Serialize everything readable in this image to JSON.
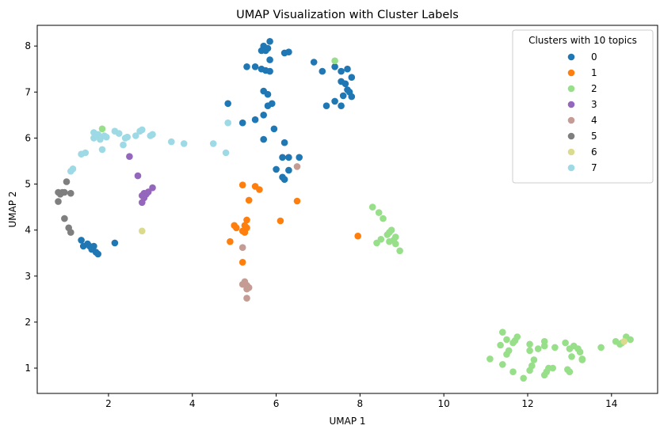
{
  "chart_data": {
    "type": "scatter",
    "title": "UMAP Visualization with Cluster Labels",
    "xlabel": "UMAP 1",
    "ylabel": "UMAP 2",
    "xlim": [
      0.3,
      15.1
    ],
    "ylim": [
      0.45,
      8.45
    ],
    "xticks": [
      2,
      4,
      6,
      8,
      10,
      12,
      14
    ],
    "yticks": [
      1,
      2,
      3,
      4,
      5,
      6,
      7,
      8
    ],
    "grid": false,
    "legend": {
      "title": "Clusters with 10 topics",
      "placement": "top-right"
    },
    "series": [
      {
        "name": "0",
        "color": "#1f77b4",
        "points": [
          [
            5.7,
            8.0
          ],
          [
            5.85,
            8.1
          ],
          [
            5.75,
            7.9
          ],
          [
            5.8,
            7.95
          ],
          [
            6.2,
            7.85
          ],
          [
            6.3,
            7.87
          ],
          [
            5.65,
            7.9
          ],
          [
            5.85,
            7.7
          ],
          [
            5.3,
            7.55
          ],
          [
            5.5,
            7.55
          ],
          [
            5.65,
            7.5
          ],
          [
            5.75,
            7.47
          ],
          [
            5.85,
            7.45
          ],
          [
            6.9,
            7.65
          ],
          [
            7.1,
            7.45
          ],
          [
            7.4,
            7.55
          ],
          [
            7.55,
            7.45
          ],
          [
            7.7,
            7.5
          ],
          [
            7.8,
            7.32
          ],
          [
            7.55,
            7.23
          ],
          [
            7.65,
            7.18
          ],
          [
            7.7,
            7.05
          ],
          [
            7.6,
            6.92
          ],
          [
            7.75,
            7.0
          ],
          [
            7.8,
            6.9
          ],
          [
            7.4,
            6.8
          ],
          [
            7.55,
            6.7
          ],
          [
            7.2,
            6.7
          ],
          [
            5.7,
            7.02
          ],
          [
            5.8,
            6.95
          ],
          [
            5.9,
            6.75
          ],
          [
            5.8,
            6.7
          ],
          [
            4.85,
            6.75
          ],
          [
            5.7,
            6.5
          ],
          [
            5.5,
            6.4
          ],
          [
            5.2,
            6.33
          ],
          [
            5.95,
            6.2
          ],
          [
            5.7,
            5.97
          ],
          [
            6.2,
            5.9
          ],
          [
            6.15,
            5.58
          ],
          [
            6.3,
            5.58
          ],
          [
            6.55,
            5.58
          ],
          [
            6.0,
            5.32
          ],
          [
            6.3,
            5.3
          ],
          [
            6.15,
            5.15
          ],
          [
            6.2,
            5.1
          ],
          [
            1.35,
            3.78
          ],
          [
            1.4,
            3.65
          ],
          [
            1.5,
            3.7
          ],
          [
            1.55,
            3.65
          ],
          [
            1.65,
            3.65
          ],
          [
            1.6,
            3.58
          ],
          [
            1.7,
            3.52
          ],
          [
            1.75,
            3.48
          ],
          [
            2.15,
            3.72
          ]
        ]
      },
      {
        "name": "1",
        "color": "#ff7f0e",
        "points": [
          [
            5.2,
            4.98
          ],
          [
            5.5,
            4.95
          ],
          [
            5.6,
            4.88
          ],
          [
            5.35,
            4.65
          ],
          [
            6.5,
            4.63
          ],
          [
            5.3,
            4.22
          ],
          [
            6.1,
            4.2
          ],
          [
            5.0,
            4.1
          ],
          [
            5.05,
            4.05
          ],
          [
            5.25,
            4.1
          ],
          [
            5.3,
            4.05
          ],
          [
            5.2,
            3.98
          ],
          [
            5.25,
            3.95
          ],
          [
            4.9,
            3.75
          ],
          [
            5.2,
            3.3
          ],
          [
            7.95,
            3.87
          ]
        ]
      },
      {
        "name": "2",
        "color": "#98df8a",
        "points": [
          [
            1.85,
            6.2
          ],
          [
            7.4,
            7.68
          ],
          [
            8.3,
            4.5
          ],
          [
            8.45,
            4.38
          ],
          [
            8.55,
            4.25
          ],
          [
            8.7,
            3.95
          ],
          [
            8.65,
            3.9
          ],
          [
            8.75,
            4.0
          ],
          [
            8.85,
            3.85
          ],
          [
            8.8,
            3.78
          ],
          [
            8.7,
            3.75
          ],
          [
            8.85,
            3.7
          ],
          [
            8.5,
            3.8
          ],
          [
            8.4,
            3.72
          ],
          [
            8.95,
            3.55
          ],
          [
            11.4,
            1.78
          ],
          [
            11.5,
            1.62
          ],
          [
            11.75,
            1.68
          ],
          [
            11.7,
            1.6
          ],
          [
            11.65,
            1.55
          ],
          [
            12.4,
            1.58
          ],
          [
            12.9,
            1.55
          ],
          [
            11.35,
            1.5
          ],
          [
            12.05,
            1.52
          ],
          [
            12.4,
            1.48
          ],
          [
            13.1,
            1.48
          ],
          [
            13.2,
            1.42
          ],
          [
            13.25,
            1.35
          ],
          [
            11.55,
            1.38
          ],
          [
            11.5,
            1.3
          ],
          [
            12.05,
            1.38
          ],
          [
            12.25,
            1.42
          ],
          [
            12.65,
            1.45
          ],
          [
            13.0,
            1.42
          ],
          [
            13.3,
            1.2
          ],
          [
            13.3,
            1.18
          ],
          [
            13.05,
            1.25
          ],
          [
            12.15,
            1.18
          ],
          [
            11.1,
            1.2
          ],
          [
            11.4,
            1.08
          ],
          [
            12.1,
            1.05
          ],
          [
            12.5,
            1.0
          ],
          [
            12.6,
            1.0
          ],
          [
            12.95,
            0.97
          ],
          [
            13.0,
            0.92
          ],
          [
            11.65,
            0.92
          ],
          [
            12.45,
            0.92
          ],
          [
            12.4,
            0.85
          ],
          [
            12.05,
            0.95
          ],
          [
            11.9,
            0.78
          ],
          [
            13.75,
            1.45
          ],
          [
            14.1,
            1.58
          ],
          [
            14.2,
            1.52
          ],
          [
            14.25,
            1.55
          ],
          [
            14.35,
            1.68
          ],
          [
            14.45,
            1.62
          ]
        ]
      },
      {
        "name": "3",
        "color": "#9467bd",
        "points": [
          [
            2.5,
            5.6
          ],
          [
            2.7,
            5.18
          ],
          [
            3.05,
            4.92
          ],
          [
            2.95,
            4.83
          ],
          [
            2.9,
            4.78
          ],
          [
            2.85,
            4.8
          ],
          [
            2.8,
            4.75
          ],
          [
            2.85,
            4.7
          ],
          [
            2.8,
            4.6
          ]
        ]
      },
      {
        "name": "4",
        "color": "#c49c94",
        "points": [
          [
            6.5,
            5.38
          ],
          [
            5.2,
            3.62
          ],
          [
            5.25,
            2.88
          ],
          [
            5.2,
            2.82
          ],
          [
            5.3,
            2.8
          ],
          [
            5.35,
            2.75
          ],
          [
            5.3,
            2.72
          ],
          [
            5.3,
            2.52
          ]
        ]
      },
      {
        "name": "5",
        "color": "#7f7f7f",
        "points": [
          [
            1.0,
            5.05
          ],
          [
            0.8,
            4.82
          ],
          [
            0.85,
            4.78
          ],
          [
            0.9,
            4.82
          ],
          [
            0.95,
            4.82
          ],
          [
            1.1,
            4.8
          ],
          [
            0.8,
            4.62
          ],
          [
            0.95,
            4.25
          ],
          [
            1.05,
            4.05
          ],
          [
            1.1,
            3.95
          ]
        ]
      },
      {
        "name": "6",
        "color": "#dbdb8d",
        "points": [
          [
            2.8,
            3.98
          ],
          [
            14.3,
            1.58
          ]
        ]
      },
      {
        "name": "7",
        "color": "#9edae5",
        "points": [
          [
            1.65,
            6.12
          ],
          [
            1.7,
            6.05
          ],
          [
            1.65,
            6.0
          ],
          [
            1.75,
            6.08
          ],
          [
            1.8,
            5.97
          ],
          [
            1.9,
            6.05
          ],
          [
            1.95,
            6.02
          ],
          [
            2.15,
            6.15
          ],
          [
            2.25,
            6.1
          ],
          [
            2.75,
            6.15
          ],
          [
            2.8,
            6.18
          ],
          [
            3.05,
            6.08
          ],
          [
            3.0,
            6.05
          ],
          [
            2.65,
            6.05
          ],
          [
            2.45,
            6.02
          ],
          [
            2.4,
            6.0
          ],
          [
            2.35,
            5.85
          ],
          [
            3.5,
            5.92
          ],
          [
            3.8,
            5.88
          ],
          [
            4.5,
            5.88
          ],
          [
            4.85,
            6.33
          ],
          [
            4.8,
            5.68
          ],
          [
            1.85,
            5.75
          ],
          [
            1.45,
            5.68
          ],
          [
            1.35,
            5.65
          ],
          [
            1.15,
            5.33
          ],
          [
            1.1,
            5.28
          ]
        ]
      }
    ]
  }
}
